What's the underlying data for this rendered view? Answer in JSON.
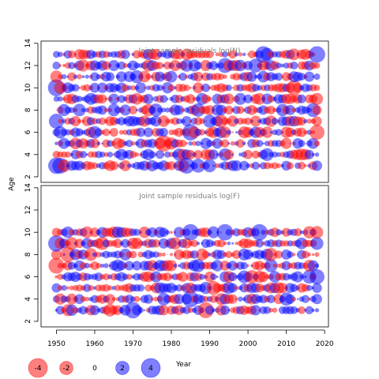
{
  "chart_data": {
    "type": "scatter",
    "encoding": "bubble grid; circle area proportional to |residual|; red = negative, blue = positive",
    "colors": {
      "negative": "#ff0000",
      "positive": "#0000ff",
      "neutral": "#ffffff",
      "panel_title": "#808080"
    },
    "shared_xlabel": "Year",
    "shared_ylabel": "Age",
    "x_ticks": [
      1950,
      1960,
      1970,
      1980,
      1990,
      2000,
      2010,
      2020
    ],
    "xlim": [
      1946,
      2021
    ],
    "panels": [
      {
        "title": "Joint sample residuals log(N)",
        "ylim": [
          1.5,
          14.2
        ],
        "y_ticks": [
          2,
          4,
          6,
          8,
          10,
          12,
          14
        ],
        "x_range": [
          1950,
          2018
        ],
        "ages": [
          3,
          4,
          5,
          6,
          7,
          8,
          9,
          10,
          11,
          12,
          13
        ],
        "highlights": [
          {
            "year": 1950,
            "age": 3,
            "value": 3.0
          },
          {
            "year": 1951,
            "age": 3,
            "value": 2.8
          },
          {
            "year": 1950,
            "age": 10,
            "value": 3.2
          },
          {
            "year": 1950,
            "age": 7,
            "value": 2.5
          },
          {
            "year": 1978,
            "age": 5,
            "value": -3.0
          },
          {
            "year": 1984,
            "age": 3,
            "value": 2.8
          },
          {
            "year": 1985,
            "age": 6,
            "value": 3.0
          },
          {
            "year": 1994,
            "age": 12,
            "value": 2.5
          },
          {
            "year": 2004,
            "age": 13,
            "value": 3.0
          },
          {
            "year": 2018,
            "age": 13,
            "value": 3.0
          },
          {
            "year": 2018,
            "age": 6,
            "value": -2.5
          },
          {
            "year": 2012,
            "age": 10,
            "value": -2.5
          }
        ]
      },
      {
        "title": "Joint sample residuals log(F)",
        "ylim": [
          1.5,
          14.2
        ],
        "y_ticks": [
          2,
          4,
          6,
          8,
          10,
          12,
          14
        ],
        "x_range": [
          1950,
          2018
        ],
        "ages": [
          3,
          4,
          5,
          6,
          7,
          8,
          9,
          10
        ],
        "highlights": [
          {
            "year": 1950,
            "age": 9,
            "value": 3.0
          },
          {
            "year": 1950,
            "age": 7,
            "value": -2.8
          },
          {
            "year": 1970,
            "age": 3,
            "value": 3.0
          },
          {
            "year": 1985,
            "age": 10,
            "value": 3.0
          },
          {
            "year": 1985,
            "age": 4,
            "value": 3.0
          },
          {
            "year": 1989,
            "age": 3,
            "value": -2.8
          },
          {
            "year": 1994,
            "age": 10,
            "value": 3.0
          },
          {
            "year": 2003,
            "age": 10,
            "value": 3.0
          },
          {
            "year": 2018,
            "age": 6,
            "value": 2.5
          },
          {
            "year": 1953,
            "age": 8,
            "value": -2.5
          }
        ]
      }
    ],
    "legend": {
      "position": "bottom-left",
      "entries": [
        {
          "label": "-4",
          "value": -4
        },
        {
          "label": "-2",
          "value": -2
        },
        {
          "label": "0",
          "value": 0
        },
        {
          "label": "2",
          "value": 2
        },
        {
          "label": "4",
          "value": 4
        }
      ]
    }
  }
}
